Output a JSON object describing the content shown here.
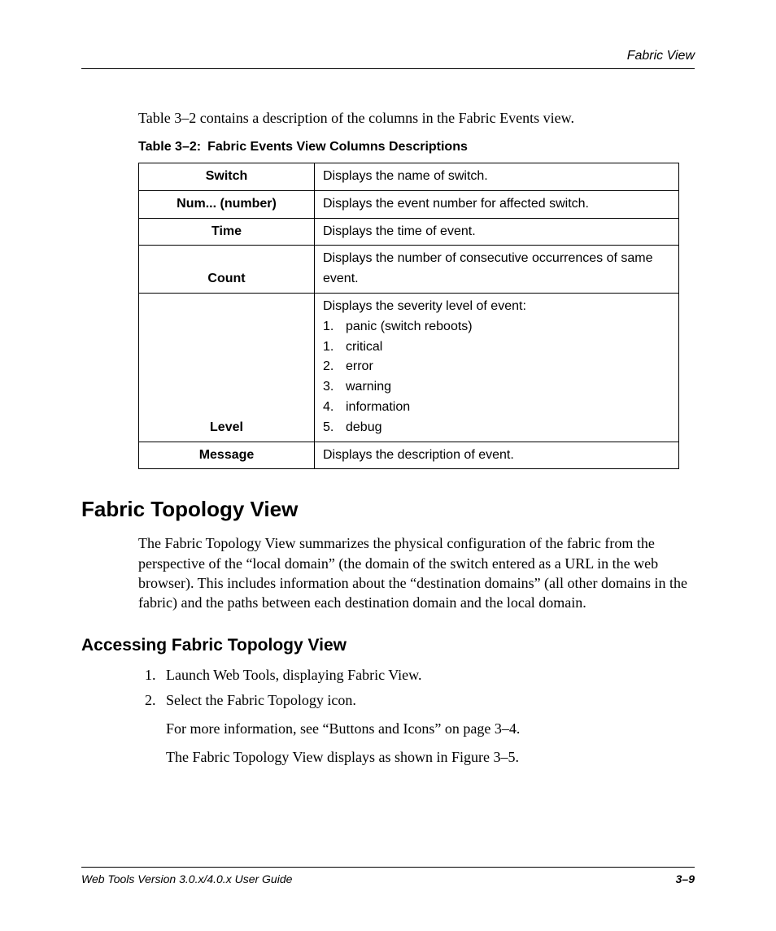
{
  "running_head": "Fabric View",
  "intro": "Table 3–2 contains a description of the columns in the Fabric Events view.",
  "table_caption_prefix": "Table 3–2:",
  "table_caption_title": "Fabric Events View Columns Descriptions",
  "table": {
    "rows": [
      {
        "name": "Switch",
        "desc": "Displays the name of switch."
      },
      {
        "name": "Num... (number)",
        "desc": "Displays the event number for affected switch."
      },
      {
        "name": "Time",
        "desc": "Displays the time of event."
      },
      {
        "name": "Count",
        "desc": "Displays the number of consecutive occurrences of same event."
      }
    ],
    "level_row": {
      "name": "Level",
      "intro": "Displays the severity level of event:",
      "items": [
        {
          "num": "1.",
          "text": "panic (switch reboots)"
        },
        {
          "num": "1.",
          "text": "critical"
        },
        {
          "num": "2.",
          "text": "error"
        },
        {
          "num": "3.",
          "text": "warning"
        },
        {
          "num": "4.",
          "text": "information"
        },
        {
          "num": "5.",
          "text": "debug"
        }
      ]
    },
    "message_row": {
      "name": "Message",
      "desc": "Displays the description of event."
    }
  },
  "section_heading": "Fabric Topology View",
  "section_para": "The Fabric Topology View summarizes the physical configuration of the fabric from the perspective of the “local domain” (the domain of the switch entered as a URL in the web browser). This includes information about the “destination domains” (all other domains in the fabric) and the paths between each destination domain and the local domain.",
  "subsection_heading": "Accessing Fabric Topology View",
  "steps": [
    "Launch Web Tools, displaying Fabric View.",
    "Select the Fabric Topology icon."
  ],
  "post_steps": [
    "For more information, see “Buttons and Icons” on page 3–4.",
    "The Fabric Topology View displays as shown in Figure 3–5."
  ],
  "footer_title": "Web Tools Version 3.0.x/4.0.x User Guide",
  "footer_page": "3–9"
}
